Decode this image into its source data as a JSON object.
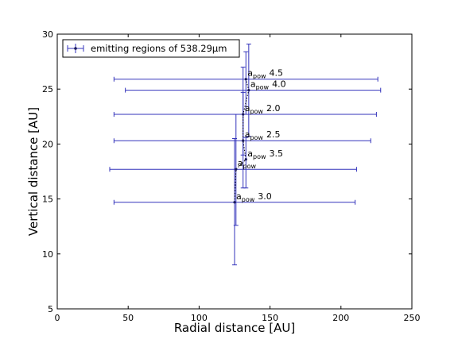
{
  "chart_data": {
    "type": "scatter",
    "xlabel": "Radial distance [AU]",
    "ylabel": "Vertical distance [AU]",
    "xlim": [
      0,
      250
    ],
    "ylim": [
      5,
      30
    ],
    "xticks": [
      0,
      50,
      100,
      150,
      200,
      250
    ],
    "yticks": [
      5,
      10,
      15,
      20,
      25,
      30
    ],
    "grid": false,
    "legend_position": "top-left",
    "series": [
      {
        "name": "emitting regions of 538.29μm",
        "color": "#3333bb",
        "line_style": "dotted",
        "points": [
          {
            "x": 125,
            "y": 14.7,
            "x_low": 40,
            "x_high": 210,
            "y_low": 9.0,
            "y_high": 20.5,
            "annotation_base": "a",
            "annotation_sub": "pow",
            "annotation_value": "3.0"
          },
          {
            "x": 126,
            "y": 17.7,
            "x_low": 37,
            "x_high": 211,
            "y_low": 12.6,
            "y_high": 22.7,
            "annotation_base": "a",
            "annotation_sub": "pow",
            "annotation_value": ""
          },
          {
            "x": 133,
            "y": 18.6,
            "x_low": null,
            "x_high": null,
            "y_low": 16.0,
            "y_high": 20.6,
            "annotation_base": "a",
            "annotation_sub": "pow",
            "annotation_value": "3.5"
          },
          {
            "x": 131,
            "y": 20.3,
            "x_low": 40,
            "x_high": 221,
            "y_low": 16.0,
            "y_high": 24.7,
            "annotation_base": "a",
            "annotation_sub": "pow",
            "annotation_value": "2.5"
          },
          {
            "x": 131,
            "y": 22.7,
            "x_low": 40,
            "x_high": 225,
            "y_low": 19.0,
            "y_high": 27.0,
            "annotation_base": "a",
            "annotation_sub": "pow",
            "annotation_value": "2.0"
          },
          {
            "x": 135,
            "y": 24.9,
            "x_low": 48,
            "x_high": 228,
            "y_low": 20.7,
            "y_high": 29.1,
            "annotation_base": "a",
            "annotation_sub": "pow",
            "annotation_value": "4.0"
          },
          {
            "x": 133,
            "y": 25.9,
            "x_low": 40,
            "x_high": 226,
            "y_low": 22.7,
            "y_high": 28.4,
            "annotation_base": "a",
            "annotation_sub": "pow",
            "annotation_value": "4.5"
          }
        ]
      }
    ]
  }
}
